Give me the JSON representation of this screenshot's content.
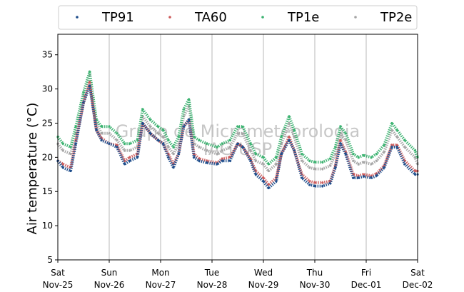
{
  "chart_data": {
    "type": "scatter",
    "title": "",
    "ylabel": "Air temperature (°C)",
    "xlabel": "",
    "ylim": [
      5,
      38
    ],
    "yticks": [
      5,
      10,
      15,
      20,
      25,
      30,
      35
    ],
    "grid": "x-only",
    "legend": "top",
    "watermark": [
      "Grupo de Micrometeorologia",
      "IAG USP"
    ],
    "xticks": [
      {
        "day": "Sat",
        "date": "Nov-25"
      },
      {
        "day": "Sun",
        "date": "Nov-26"
      },
      {
        "day": "Mon",
        "date": "Nov-27"
      },
      {
        "day": "Tue",
        "date": "Nov-28"
      },
      {
        "day": "Wed",
        "date": "Nov-29"
      },
      {
        "day": "Thu",
        "date": "Nov-30"
      },
      {
        "day": "Fri",
        "date": "Dec-01"
      },
      {
        "day": "Sat",
        "date": "Dec-02"
      }
    ],
    "x_keypoints_days": [
      0,
      0.1,
      0.25,
      0.35,
      0.5,
      0.62,
      0.75,
      0.85,
      1.0,
      1.15,
      1.3,
      1.4,
      1.55,
      1.65,
      1.8,
      1.95,
      2.05,
      2.15,
      2.25,
      2.35,
      2.45,
      2.55,
      2.65,
      2.75,
      2.9,
      3.1,
      3.2,
      3.35,
      3.5,
      3.6,
      3.75,
      3.85,
      4.0,
      4.1,
      4.25,
      4.35,
      4.5,
      4.6,
      4.75,
      4.9,
      5.0,
      5.15,
      5.3,
      5.4,
      5.5,
      5.6,
      5.75,
      5.85,
      5.95,
      6.1,
      6.2,
      6.35,
      6.5,
      6.6,
      6.75,
      6.95,
      7.0
    ],
    "series": [
      {
        "name": "TP91",
        "color": "#1f4e8c",
        "values": [
          19.5,
          18.5,
          18.0,
          22.0,
          28.0,
          30.5,
          24.0,
          22.5,
          22.0,
          21.5,
          19.0,
          19.5,
          20.0,
          25.0,
          23.5,
          22.5,
          22.0,
          20.0,
          18.5,
          20.5,
          24.5,
          25.5,
          20.0,
          19.5,
          19.2,
          19.0,
          19.5,
          19.5,
          22.0,
          21.5,
          19.5,
          17.5,
          16.5,
          15.5,
          16.5,
          20.5,
          22.5,
          21.0,
          17.0,
          16.0,
          15.8,
          15.8,
          16.2,
          18.5,
          22.0,
          20.5,
          17.0,
          17.0,
          17.2,
          17.0,
          17.3,
          18.5,
          21.5,
          21.5,
          19.0,
          17.5,
          17.5
        ]
      },
      {
        "name": "TA60",
        "color": "#cd5c5c",
        "values": [
          19.5,
          19.0,
          18.5,
          22.5,
          28.0,
          31.0,
          24.0,
          22.8,
          22.0,
          21.8,
          19.5,
          20.0,
          20.5,
          25.0,
          23.5,
          22.5,
          22.0,
          20.5,
          19.0,
          20.5,
          24.5,
          25.5,
          20.5,
          19.8,
          19.5,
          19.2,
          19.8,
          20.0,
          22.0,
          21.5,
          19.8,
          18.0,
          17.0,
          16.0,
          17.0,
          20.5,
          23.0,
          21.0,
          17.5,
          16.5,
          16.3,
          16.3,
          16.5,
          18.8,
          22.5,
          20.8,
          17.5,
          17.3,
          17.5,
          17.3,
          17.6,
          18.8,
          21.8,
          21.8,
          19.5,
          18.0,
          18.0
        ]
      },
      {
        "name": "TP1e",
        "color": "#3cb371",
        "values": [
          23.0,
          22.0,
          21.5,
          24.5,
          29.5,
          32.5,
          25.5,
          24.5,
          24.5,
          23.5,
          22.0,
          22.0,
          22.5,
          27.0,
          25.5,
          24.5,
          24.0,
          22.5,
          21.5,
          23.0,
          27.0,
          28.5,
          23.0,
          22.5,
          22.0,
          21.5,
          22.0,
          22.5,
          24.5,
          24.5,
          22.0,
          20.5,
          20.0,
          19.0,
          20.0,
          23.0,
          26.0,
          24.0,
          20.5,
          19.5,
          19.3,
          19.3,
          19.8,
          21.5,
          24.5,
          23.5,
          20.5,
          20.0,
          20.3,
          20.0,
          20.5,
          21.8,
          25.0,
          24.0,
          22.5,
          21.0,
          20.0
        ]
      },
      {
        "name": "TP2e",
        "color": "#a6a6a6",
        "values": [
          22.0,
          21.0,
          20.5,
          23.5,
          29.0,
          32.0,
          25.0,
          23.5,
          23.5,
          22.5,
          21.0,
          21.0,
          21.5,
          26.0,
          24.5,
          23.5,
          23.0,
          21.5,
          20.5,
          22.0,
          26.0,
          27.5,
          22.0,
          21.5,
          21.0,
          20.5,
          21.0,
          21.5,
          23.5,
          23.5,
          21.0,
          19.5,
          19.0,
          18.0,
          19.0,
          22.0,
          25.0,
          23.0,
          19.5,
          18.5,
          18.3,
          18.3,
          18.8,
          20.5,
          23.5,
          22.5,
          19.5,
          19.0,
          19.3,
          19.0,
          19.5,
          20.8,
          24.0,
          23.0,
          21.5,
          20.0,
          19.0
        ]
      }
    ]
  }
}
